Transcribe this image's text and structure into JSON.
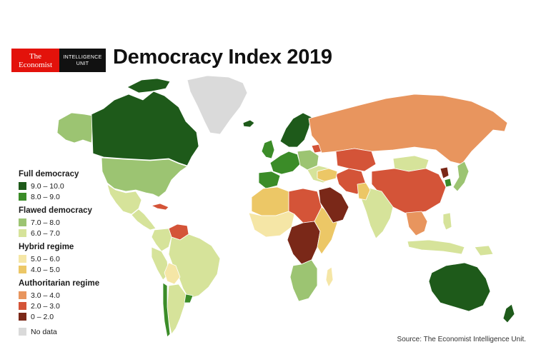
{
  "logo": {
    "brand_line1": "The",
    "brand_line2": "Economist",
    "unit_line1": "INTELLIGENCE",
    "unit_line2": "UNIT",
    "brand_color": "#e3120b",
    "unit_color": "#111111"
  },
  "title": "Democracy Index 2019",
  "legend": {
    "groups": [
      {
        "title": "Full democracy",
        "items": [
          {
            "label": "9.0 – 10.0",
            "color": "#1e5a1a"
          },
          {
            "label": "8.0 – 9.0",
            "color": "#3b8c28"
          }
        ]
      },
      {
        "title": "Flawed democracy",
        "items": [
          {
            "label": "7.0 – 8.0",
            "color": "#9cc472"
          },
          {
            "label": "6.0 – 7.0",
            "color": "#d6e39a"
          }
        ]
      },
      {
        "title": "Hybrid regime",
        "items": [
          {
            "label": "5.0 – 6.0",
            "color": "#f5e6a6"
          },
          {
            "label": "4.0 – 5.0",
            "color": "#ecc766"
          }
        ]
      },
      {
        "title": "Authoritarian regime",
        "items": [
          {
            "label": "3.0 – 4.0",
            "color": "#e8955e"
          },
          {
            "label": "2.0 – 3.0",
            "color": "#d45438"
          },
          {
            "label": "0 – 2.0",
            "color": "#7a2818"
          }
        ]
      }
    ],
    "no_data": {
      "label": "No data",
      "color": "#dadada"
    }
  },
  "source": "Source: The Economist Intelligence Unit.",
  "map": {
    "regions": [
      {
        "name": "alaska",
        "category": "7.0 – 8.0"
      },
      {
        "name": "canada",
        "category": "9.0 – 10.0"
      },
      {
        "name": "arctic-islands",
        "category": "9.0 – 10.0"
      },
      {
        "name": "greenland",
        "category": "No data"
      },
      {
        "name": "iceland",
        "category": "9.0 – 10.0"
      },
      {
        "name": "united-states",
        "category": "7.0 – 8.0"
      },
      {
        "name": "mexico",
        "category": "6.0 – 7.0"
      },
      {
        "name": "central-america",
        "category": "6.0 – 7.0"
      },
      {
        "name": "cuba",
        "category": "2.0 – 3.0"
      },
      {
        "name": "venezuela",
        "category": "2.0 – 3.0"
      },
      {
        "name": "colombia",
        "category": "6.0 – 7.0"
      },
      {
        "name": "peru",
        "category": "6.0 – 7.0"
      },
      {
        "name": "brazil",
        "category": "6.0 – 7.0"
      },
      {
        "name": "bolivia",
        "category": "5.0 – 6.0"
      },
      {
        "name": "argentina",
        "category": "6.0 – 7.0"
      },
      {
        "name": "chile",
        "category": "8.0 – 9.0"
      },
      {
        "name": "uruguay",
        "category": "8.0 – 9.0"
      },
      {
        "name": "scandinavia",
        "category": "9.0 – 10.0"
      },
      {
        "name": "uk-ireland",
        "category": "8.0 – 9.0"
      },
      {
        "name": "western-europe",
        "category": "8.0 – 9.0"
      },
      {
        "name": "iberia",
        "category": "8.0 – 9.0"
      },
      {
        "name": "central-europe",
        "category": "7.0 – 8.0"
      },
      {
        "name": "eastern-europe",
        "category": "6.0 – 7.0"
      },
      {
        "name": "belarus",
        "category": "2.0 – 3.0"
      },
      {
        "name": "russia",
        "category": "3.0 – 4.0"
      },
      {
        "name": "north-africa",
        "category": "4.0 – 5.0"
      },
      {
        "name": "libya-sudan",
        "category": "2.0 – 3.0"
      },
      {
        "name": "west-africa",
        "category": "5.0 – 6.0"
      },
      {
        "name": "central-africa",
        "category": "0 – 2.0"
      },
      {
        "name": "east-africa",
        "category": "4.0 – 5.0"
      },
      {
        "name": "southern-africa",
        "category": "7.0 – 8.0"
      },
      {
        "name": "madagascar",
        "category": "5.0 – 6.0"
      },
      {
        "name": "arabia",
        "category": "0 – 2.0"
      },
      {
        "name": "iran",
        "category": "2.0 – 3.0"
      },
      {
        "name": "turkey",
        "category": "4.0 – 5.0"
      },
      {
        "name": "central-asia",
        "category": "2.0 – 3.0"
      },
      {
        "name": "mongolia",
        "category": "6.0 – 7.0"
      },
      {
        "name": "china",
        "category": "2.0 – 3.0"
      },
      {
        "name": "north-korea",
        "category": "0 – 2.0"
      },
      {
        "name": "south-korea",
        "category": "8.0 – 9.0"
      },
      {
        "name": "japan",
        "category": "7.0 – 8.0"
      },
      {
        "name": "india",
        "category": "6.0 – 7.0"
      },
      {
        "name": "pakistan",
        "category": "4.0 – 5.0"
      },
      {
        "name": "southeast-asia",
        "category": "3.0 – 4.0"
      },
      {
        "name": "indonesia",
        "category": "6.0 – 7.0"
      },
      {
        "name": "philippines",
        "category": "6.0 – 7.0"
      },
      {
        "name": "papua-new-guinea",
        "category": "6.0 – 7.0"
      },
      {
        "name": "australia",
        "category": "9.0 – 10.0"
      },
      {
        "name": "new-zealand",
        "category": "9.0 – 10.0"
      }
    ]
  }
}
